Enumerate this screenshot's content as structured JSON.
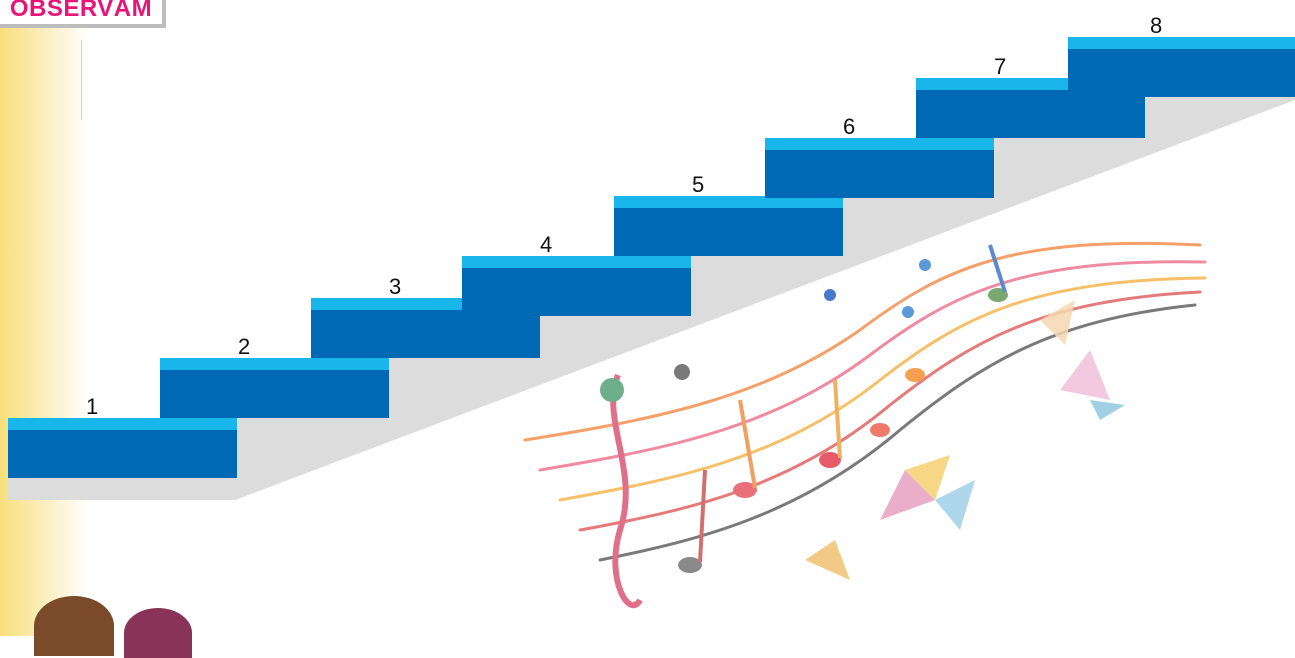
{
  "badge": {
    "label": "OBSERVĂM"
  },
  "colors": {
    "step_top": "#18b6ea",
    "step_face": "#0069b6",
    "ramp": "#dcdcdc",
    "badge_text": "#e8147a"
  },
  "steps": [
    {
      "number": "1"
    },
    {
      "number": "2"
    },
    {
      "number": "3"
    },
    {
      "number": "4"
    },
    {
      "number": "5"
    },
    {
      "number": "6"
    },
    {
      "number": "7"
    },
    {
      "number": "8"
    }
  ],
  "decoration": {
    "icon": "music-notes-staff-icon",
    "butterflies": "butterfly-icon"
  }
}
